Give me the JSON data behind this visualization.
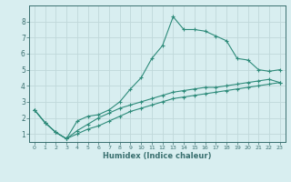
{
  "title": "",
  "xlabel": "Humidex (Indice chaleur)",
  "bg_color": "#d8eef0",
  "grid_color": "#c0d8da",
  "line_color": "#2e8b7a",
  "axis_color": "#3a7070",
  "xlim": [
    -0.5,
    23.5
  ],
  "ylim": [
    0.5,
    9.0
  ],
  "xticks": [
    0,
    1,
    2,
    3,
    4,
    5,
    6,
    7,
    8,
    9,
    10,
    11,
    12,
    13,
    14,
    15,
    16,
    17,
    18,
    19,
    20,
    21,
    22,
    23
  ],
  "yticks": [
    1,
    2,
    3,
    4,
    5,
    6,
    7,
    8
  ],
  "line1_x": [
    0,
    1,
    2,
    3,
    4,
    5,
    6,
    7,
    8,
    9,
    10,
    11,
    12,
    13,
    14,
    15,
    16,
    17,
    18,
    19,
    20,
    21,
    22,
    23
  ],
  "line1_y": [
    2.5,
    1.7,
    1.1,
    0.7,
    1.8,
    2.1,
    2.2,
    2.5,
    3.0,
    3.8,
    4.5,
    5.7,
    6.5,
    8.3,
    7.5,
    7.5,
    7.4,
    7.1,
    6.8,
    5.7,
    5.6,
    5.0,
    4.9,
    5.0
  ],
  "line2_x": [
    0,
    1,
    2,
    3,
    4,
    5,
    6,
    7,
    8,
    9,
    10,
    11,
    12,
    13,
    14,
    15,
    16,
    17,
    18,
    19,
    20,
    21,
    22,
    23
  ],
  "line2_y": [
    2.5,
    1.7,
    1.1,
    0.7,
    1.2,
    1.6,
    2.0,
    2.3,
    2.6,
    2.8,
    3.0,
    3.2,
    3.4,
    3.6,
    3.7,
    3.8,
    3.9,
    3.9,
    4.0,
    4.1,
    4.2,
    4.3,
    4.4,
    4.2
  ],
  "line3_x": [
    0,
    1,
    2,
    3,
    4,
    5,
    6,
    7,
    8,
    9,
    10,
    11,
    12,
    13,
    14,
    15,
    16,
    17,
    18,
    19,
    20,
    21,
    22,
    23
  ],
  "line3_y": [
    2.5,
    1.7,
    1.1,
    0.7,
    1.0,
    1.3,
    1.5,
    1.8,
    2.1,
    2.4,
    2.6,
    2.8,
    3.0,
    3.2,
    3.3,
    3.4,
    3.5,
    3.6,
    3.7,
    3.8,
    3.9,
    4.0,
    4.1,
    4.2
  ]
}
